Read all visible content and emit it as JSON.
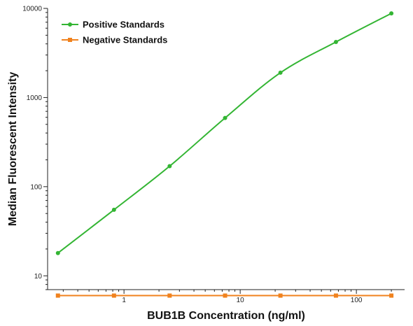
{
  "chart_data": {
    "type": "line",
    "xlabel": "BUB1B Concentration (ng/ml)",
    "ylabel": "Median Fluorescent Intensity",
    "x_scale": "log",
    "y_scale": "log",
    "xlim": [
      0.22,
      260
    ],
    "ylim": [
      7,
      10000
    ],
    "x_ticks": [
      {
        "value": 1,
        "label": "1"
      },
      {
        "value": 10,
        "label": "10"
      },
      {
        "value": 100,
        "label": "100"
      }
    ],
    "y_ticks": [
      {
        "value": 10,
        "label": "10"
      },
      {
        "value": 100,
        "label": "100"
      },
      {
        "value": 1000,
        "label": "1000"
      },
      {
        "value": 10000,
        "label": "10000"
      }
    ],
    "grid": false,
    "legend_position": "top-left",
    "series": [
      {
        "name": "Positive Standards",
        "color": "#33b533",
        "marker": "circle",
        "points": [
          {
            "x": 0.27,
            "y": 18
          },
          {
            "x": 0.82,
            "y": 55
          },
          {
            "x": 2.47,
            "y": 170
          },
          {
            "x": 7.41,
            "y": 590
          },
          {
            "x": 22.2,
            "y": 1900
          },
          {
            "x": 66.7,
            "y": 4200
          },
          {
            "x": 200,
            "y": 8800
          }
        ]
      },
      {
        "name": "Negative Standards",
        "color": "#f0821e",
        "marker": "square",
        "points": [
          {
            "x": 0.27,
            "y": 6
          },
          {
            "x": 0.82,
            "y": 6
          },
          {
            "x": 2.47,
            "y": 6
          },
          {
            "x": 7.41,
            "y": 6
          },
          {
            "x": 22.2,
            "y": 6
          },
          {
            "x": 66.7,
            "y": 6
          },
          {
            "x": 200,
            "y": 6
          }
        ]
      }
    ]
  }
}
